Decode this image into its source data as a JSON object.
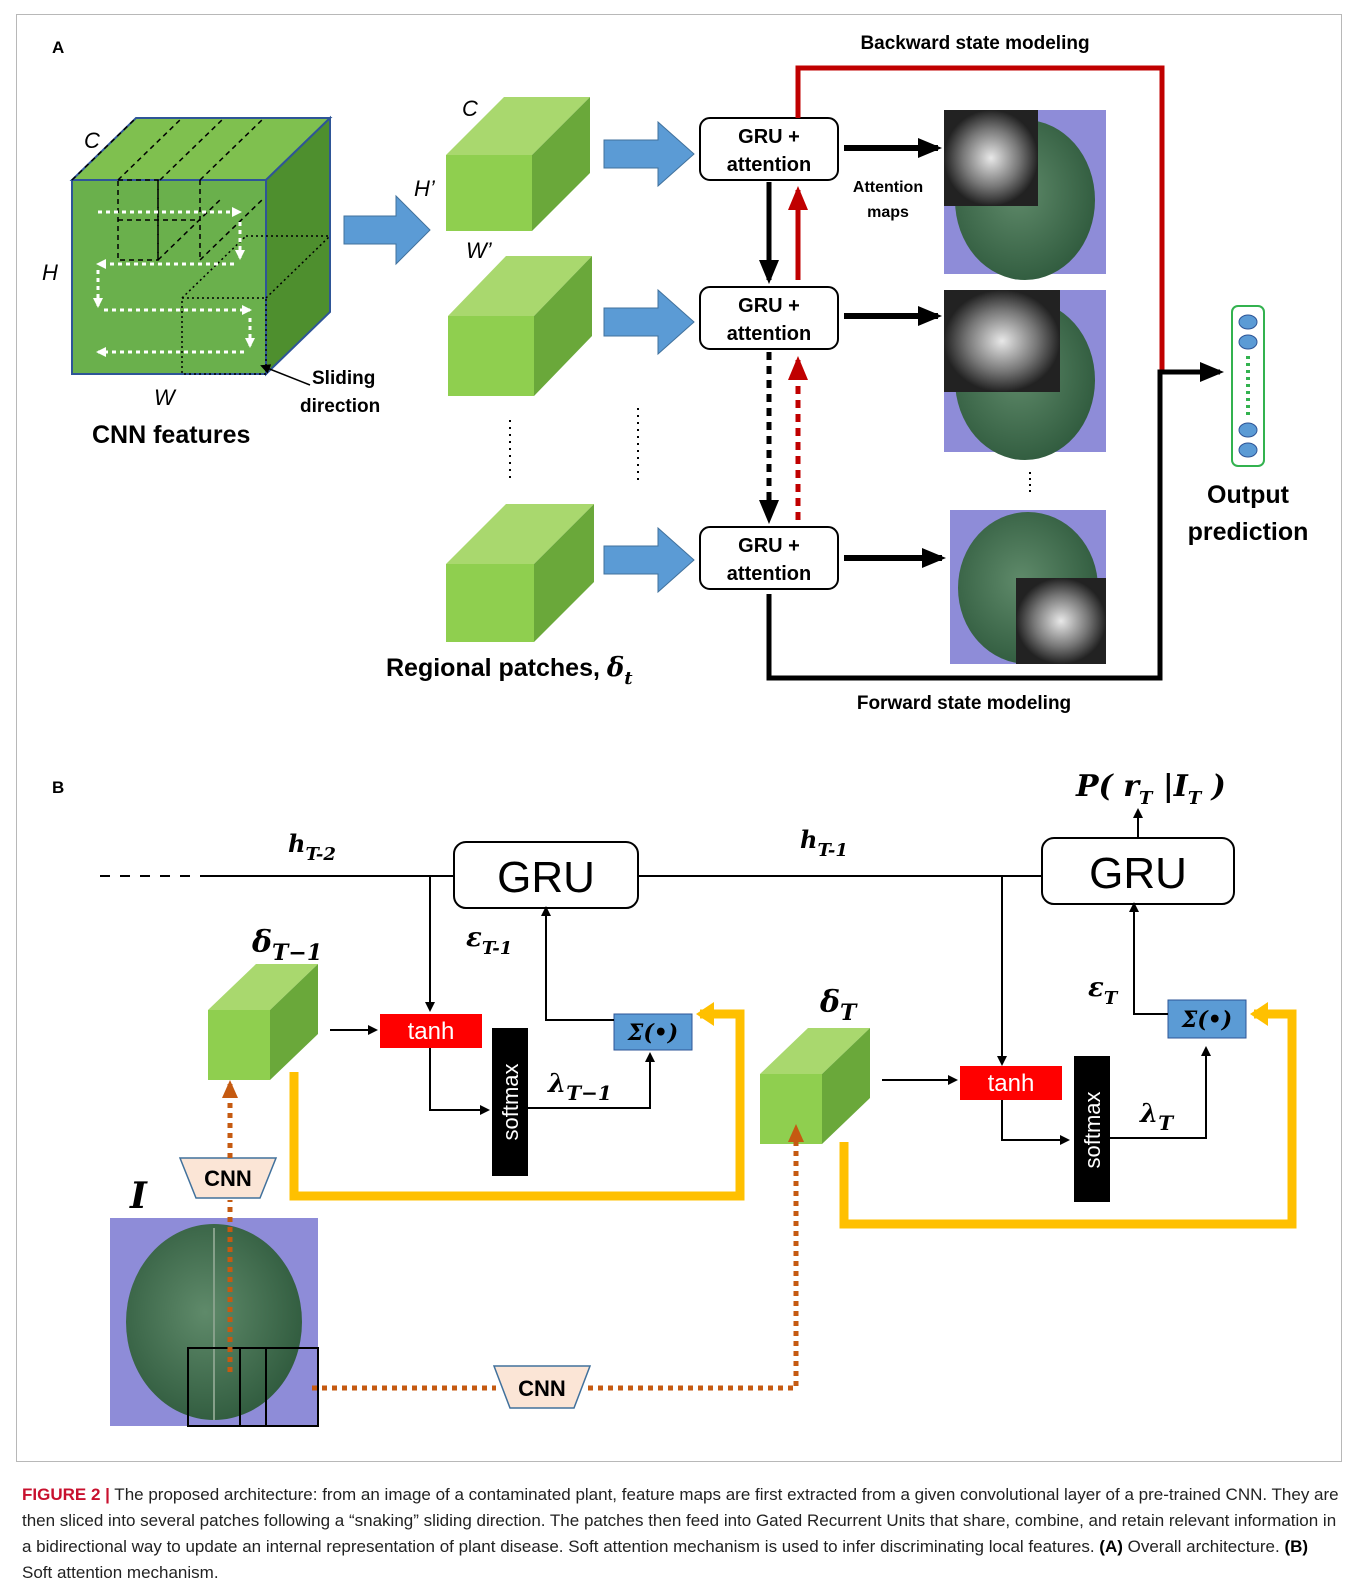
{
  "panelA": {
    "letter": "A",
    "cnn_cube": {
      "label_c": "C",
      "label_h": "H",
      "label_w": "W",
      "title": "CNN features"
    },
    "sliding_label_1": "Sliding",
    "sliding_label_2": "direction",
    "patch_labels": {
      "c": "C",
      "h": "H’",
      "w": "W’"
    },
    "regional_patches_label": "Regional patches, ",
    "regional_patches_symbol": "δ",
    "regional_patches_sub": "t",
    "gru_line1": "GRU +",
    "gru_line2": "attention",
    "attention_maps_1": "Attention",
    "attention_maps_2": "maps",
    "backward_label": "Backward state modeling",
    "forward_label": "Forward state modeling",
    "output_1": "Output",
    "output_2": "prediction",
    "colors": {
      "backward": "#c00000",
      "forward": "#000000",
      "arrow_blue": "#5b9bd5",
      "cube_green": "#6ab04c",
      "patch_green": "#8fcf4f"
    }
  },
  "panelB": {
    "letter": "B",
    "h_prev2": "h",
    "h_prev2_sub": "T-2",
    "h_prev1": "h",
    "h_prev1_sub": "T-1",
    "gru": "GRU",
    "p_label": "P( r",
    "p_sub": "T",
    "p_mid": " |I",
    "p_sub2": "T",
    "p_end": " )",
    "delta_prev": "δ",
    "delta_prev_sub": "T−1",
    "delta_cur": "δ",
    "delta_cur_sub": "T",
    "eps_prev": "ε",
    "eps_prev_sub": "T-1",
    "eps_cur": "ε",
    "eps_cur_sub": "T",
    "lambda_prev": "λ",
    "lambda_prev_sub": "T−1",
    "lambda_cur": "λ",
    "lambda_cur_sub": "T",
    "tanh": "tanh",
    "softmax": "softmax",
    "sigma": "Σ(•)",
    "cnn": "CNN",
    "image_label": "I",
    "colors": {
      "tanh": "#ff0000",
      "sigma": "#5b9bd5",
      "yellow": "#ffc000",
      "orange": "#c55a11",
      "cnn_fill": "#fbe5d6"
    }
  },
  "caption": {
    "figure": "FIGURE 2 |",
    "text": " The proposed architecture: from an image of a contaminated plant, feature maps are first extracted from a given convolutional layer of a pre-trained CNN. They are then sliced into several patches following a “snaking” sliding direction. The patches then feed into Gated Recurrent Units that share, combine, and retain relevant information in a bidirectional way to update an internal representation of plant disease. Soft attention mechanism is used to infer discriminating local features. ",
    "a_tag": "(A)",
    "a_text": " Overall architecture. ",
    "b_tag": "(B)",
    "b_text": " Soft attention mechanism."
  }
}
